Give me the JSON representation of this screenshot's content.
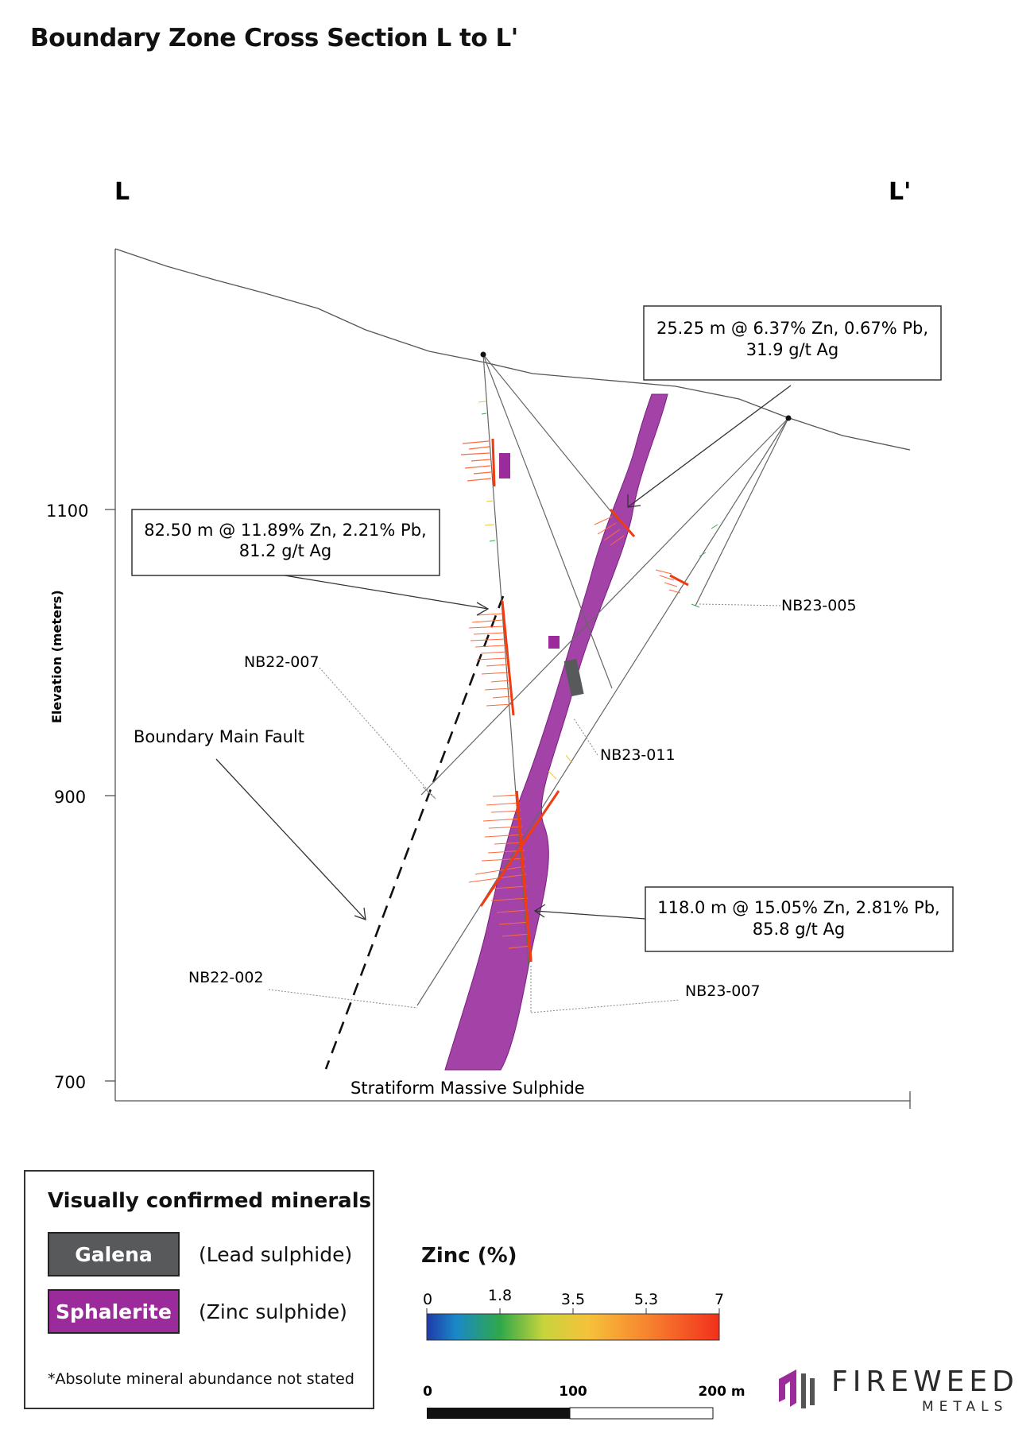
{
  "title": "Boundary Zone Cross Section L to L'",
  "section_ends": {
    "left": "L",
    "right": "L'"
  },
  "axis": {
    "ylabel": "Elevation (meters)",
    "ticks": [
      "1100",
      "900",
      "700"
    ]
  },
  "intercepts": [
    {
      "line1": "25.25 m @ 6.37% Zn, 0.67% Pb,",
      "line2": "31.9 g/t Ag"
    },
    {
      "line1": "82.50 m @ 11.89% Zn, 2.21% Pb,",
      "line2": "81.2 g/t Ag"
    },
    {
      "line1": "118.0 m @ 15.05% Zn, 2.81% Pb,",
      "line2": "85.8 g/t Ag"
    }
  ],
  "drill_holes": [
    "NB23-005",
    "NB22-007",
    "NB23-011",
    "NB22-002",
    "NB23-007"
  ],
  "labels": {
    "fault": "Boundary Main Fault",
    "sulphide": "Stratiform Massive Sulphide"
  },
  "legend": {
    "title": "Visually confirmed minerals",
    "galena": {
      "name": "Galena",
      "desc": "(Lead sulphide)",
      "color": "#58595b"
    },
    "sphalerite": {
      "name": "Sphalerite",
      "desc": "(Zinc sulphide)",
      "color": "#9b2a9b"
    },
    "note": "*Absolute mineral abundance not stated"
  },
  "zinc_scale": {
    "title": "Zinc (%)",
    "ticks": [
      "0",
      "1.8",
      "3.5",
      "5.3",
      "7"
    ]
  },
  "scale_bar": {
    "labels": [
      "0",
      "100",
      "200 m"
    ]
  },
  "logo": {
    "word": "FIREWEED",
    "sub": "METALS"
  }
}
